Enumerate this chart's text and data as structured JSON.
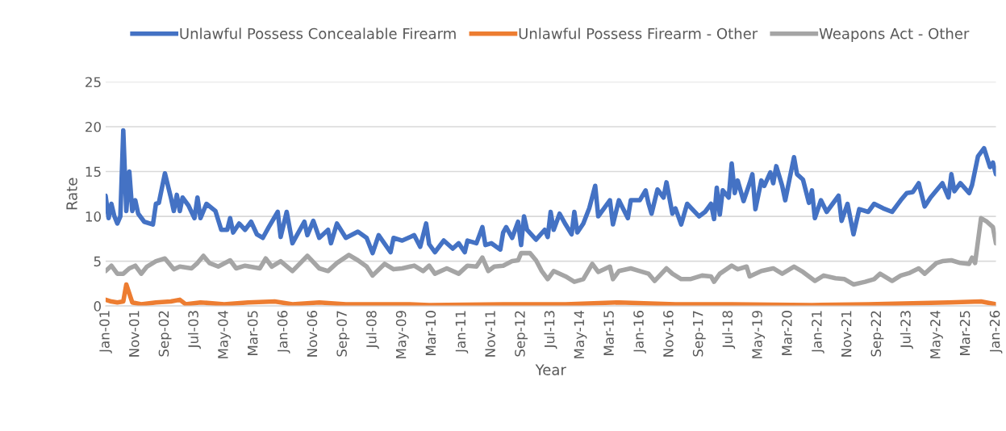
{
  "chart_data": {
    "type": "line",
    "xlabel": "Year",
    "ylabel": "Rate",
    "ylim": [
      0,
      25
    ],
    "yticks": [
      0,
      5,
      10,
      15,
      20,
      25
    ],
    "grid": "y",
    "legend": "top",
    "marker": "none",
    "line_style": "solid",
    "xlim": [
      "2001-01",
      "2026-01"
    ],
    "xticks": [
      {
        "value": "2001-01",
        "label": "Jan-01"
      },
      {
        "value": "2001-11",
        "label": "Nov-01"
      },
      {
        "value": "2002-09",
        "label": "Sep-02"
      },
      {
        "value": "2003-07",
        "label": "Jul-03"
      },
      {
        "value": "2004-05",
        "label": "May-04"
      },
      {
        "value": "2005-03",
        "label": "Mar-05"
      },
      {
        "value": "2006-01",
        "label": "Jan-06"
      },
      {
        "value": "2006-11",
        "label": "Nov-06"
      },
      {
        "value": "2007-09",
        "label": "Sep-07"
      },
      {
        "value": "2008-07",
        "label": "Jul-08"
      },
      {
        "value": "2009-05",
        "label": "May-09"
      },
      {
        "value": "2010-03",
        "label": "Mar-10"
      },
      {
        "value": "2011-01",
        "label": "Jan-11"
      },
      {
        "value": "2011-11",
        "label": "Nov-11"
      },
      {
        "value": "2012-09",
        "label": "Sep-12"
      },
      {
        "value": "2013-07",
        "label": "Jul-13"
      },
      {
        "value": "2014-05",
        "label": "May-14"
      },
      {
        "value": "2015-03",
        "label": "Mar-15"
      },
      {
        "value": "2016-01",
        "label": "Jan-16"
      },
      {
        "value": "2016-11",
        "label": "Nov-16"
      },
      {
        "value": "2017-09",
        "label": "Sep-17"
      },
      {
        "value": "2018-07",
        "label": "Jul-18"
      },
      {
        "value": "2019-05",
        "label": "May-19"
      },
      {
        "value": "2020-03",
        "label": "Mar-20"
      },
      {
        "value": "2021-01",
        "label": "Jan-21"
      },
      {
        "value": "2021-11",
        "label": "Nov-21"
      },
      {
        "value": "2022-09",
        "label": "Sep-22"
      },
      {
        "value": "2023-07",
        "label": "Jul-23"
      },
      {
        "value": "2024-05",
        "label": "May-24"
      },
      {
        "value": "2025-03",
        "label": "Mar-25"
      },
      {
        "value": "2026-01",
        "label": "Jan-26"
      }
    ],
    "series": [
      {
        "name": "Unlawful Possess Concealable Firearm",
        "color": "#4472c4",
        "x": [
          "2001-01",
          "2001-02",
          "2001-03",
          "2001-04",
          "2001-05",
          "2001-06",
          "2001-07",
          "2001-08",
          "2001-09",
          "2001-10",
          "2001-11",
          "2001-12",
          "2002-02",
          "2002-05",
          "2002-06",
          "2002-07",
          "2002-09",
          "2002-11",
          "2002-12",
          "2003-01",
          "2003-02",
          "2003-03",
          "2003-05",
          "2003-07",
          "2003-08",
          "2003-09",
          "2003-11",
          "2004-02",
          "2004-04",
          "2004-06",
          "2004-07",
          "2004-08",
          "2004-10",
          "2004-12",
          "2005-02",
          "2005-04",
          "2005-06",
          "2005-08",
          "2005-11",
          "2005-12",
          "2006-02",
          "2006-04",
          "2006-08",
          "2006-09",
          "2006-11",
          "2007-01",
          "2007-04",
          "2007-05",
          "2007-07",
          "2007-10",
          "2008-02",
          "2008-05",
          "2008-07",
          "2008-09",
          "2009-01",
          "2009-02",
          "2009-05",
          "2009-07",
          "2009-09",
          "2009-11",
          "2010-01",
          "2010-02",
          "2010-04",
          "2010-07",
          "2010-10",
          "2010-12",
          "2011-02",
          "2011-03",
          "2011-06",
          "2011-08",
          "2011-09",
          "2011-11",
          "2012-02",
          "2012-03",
          "2012-04",
          "2012-06",
          "2012-08",
          "2012-09",
          "2012-10",
          "2012-11",
          "2013-02",
          "2013-05",
          "2013-06",
          "2013-07",
          "2013-08",
          "2013-10",
          "2013-12",
          "2014-02",
          "2014-03",
          "2014-04",
          "2014-06",
          "2014-08",
          "2014-10",
          "2014-11",
          "2015-03",
          "2015-04",
          "2015-06",
          "2015-09",
          "2015-10",
          "2016-01",
          "2016-03",
          "2016-04",
          "2016-05",
          "2016-07",
          "2016-09",
          "2016-10",
          "2016-12",
          "2017-01",
          "2017-03",
          "2017-05",
          "2017-09",
          "2017-11",
          "2018-01",
          "2018-02",
          "2018-03",
          "2018-04",
          "2018-05",
          "2018-07",
          "2018-08",
          "2018-09",
          "2018-10",
          "2018-12",
          "2019-02",
          "2019-03",
          "2019-04",
          "2019-06",
          "2019-07",
          "2019-09",
          "2019-10",
          "2019-11",
          "2020-01",
          "2020-02",
          "2020-05",
          "2020-06",
          "2020-08",
          "2020-10",
          "2020-11",
          "2020-12",
          "2021-02",
          "2021-04",
          "2021-06",
          "2021-08",
          "2021-09",
          "2021-11",
          "2022-01",
          "2022-03",
          "2022-06",
          "2022-08",
          "2022-11",
          "2023-02",
          "2023-05",
          "2023-07",
          "2023-09",
          "2023-11",
          "2024-01",
          "2024-03",
          "2024-07",
          "2024-09",
          "2024-10",
          "2024-11",
          "2025-01",
          "2025-04",
          "2025-05",
          "2025-07",
          "2025-09",
          "2025-11",
          "2025-12",
          "2026-01"
        ],
        "values": [
          12.3,
          9.8,
          11.4,
          10,
          9.2,
          10,
          19.6,
          10.6,
          15,
          10.6,
          11.8,
          10.3,
          9.4,
          9.1,
          11.4,
          11.5,
          14.8,
          12.1,
          10.6,
          12.4,
          10.6,
          12.1,
          11.2,
          9.8,
          12.1,
          9.8,
          11.4,
          10.6,
          8.5,
          8.5,
          9.8,
          8.2,
          9.2,
          8.5,
          9.4,
          8,
          7.6,
          8.8,
          10.5,
          7.7,
          10.5,
          7,
          9.4,
          7.9,
          9.5,
          7.6,
          8.5,
          7,
          9.2,
          7.6,
          8.3,
          7.6,
          5.9,
          7.9,
          6,
          7.6,
          7.3,
          7.6,
          7.9,
          6.6,
          9.2,
          6.9,
          6,
          7.3,
          6.4,
          7,
          6,
          7.3,
          7,
          8.8,
          6.8,
          7,
          6.3,
          8.2,
          8.8,
          7.6,
          9.4,
          6.8,
          10,
          8.5,
          7.4,
          8.5,
          7.7,
          10.5,
          8.5,
          10.3,
          9.1,
          8,
          10.5,
          8.2,
          9.2,
          10.9,
          13.4,
          10,
          11.8,
          9.1,
          11.8,
          9.8,
          11.8,
          11.8,
          12.9,
          11.4,
          10.3,
          13,
          12.1,
          13.8,
          10.3,
          10.9,
          9.1,
          11.4,
          10,
          10.5,
          11.4,
          9.7,
          13.2,
          10.2,
          12.9,
          12.1,
          15.9,
          12.6,
          14,
          11.7,
          13.7,
          14.7,
          10.8,
          14,
          13.4,
          14.9,
          13.7,
          15.6,
          13.4,
          11.8,
          16.6,
          14.7,
          14.1,
          11.5,
          12.9,
          9.8,
          11.8,
          10.5,
          11.4,
          12.3,
          9.5,
          11.4,
          8,
          10.8,
          10.5,
          11.4,
          10.9,
          10.5,
          11.8,
          12.6,
          12.7,
          13.7,
          11.1,
          12.1,
          13.7,
          12.1,
          14.7,
          12.8,
          13.7,
          12.6,
          13.5,
          16.7,
          17.6,
          15.5,
          16,
          14.7
        ]
      },
      {
        "name": "Unlawful Possess Firearm - Other",
        "color": "#ed7d31",
        "x": [
          "2001-01",
          "2001-03",
          "2001-05",
          "2001-07",
          "2001-08",
          "2001-10",
          "2002-01",
          "2002-06",
          "2002-11",
          "2003-02",
          "2003-04",
          "2003-09",
          "2004-05",
          "2005-01",
          "2005-10",
          "2006-04",
          "2007-01",
          "2007-10",
          "2008-07",
          "2009-07",
          "2010-02",
          "2012-03",
          "2013-12",
          "2015-06",
          "2017-01",
          "2018-08",
          "2020-11",
          "2022-06",
          "2024-09",
          "2025-08",
          "2026-01"
        ],
        "values": [
          0.7,
          0.5,
          0.4,
          0.5,
          2.4,
          0.4,
          0.2,
          0.4,
          0.5,
          0.7,
          0.2,
          0.4,
          0.2,
          0.4,
          0.5,
          0.2,
          0.4,
          0.2,
          0.2,
          0.2,
          0.1,
          0.2,
          0.2,
          0.4,
          0.2,
          0.2,
          0.1,
          0.2,
          0.4,
          0.5,
          0.2
        ]
      },
      {
        "name": "Weapons Act - Other",
        "color": "#a5a5a5",
        "x": [
          "2001-01",
          "2001-03",
          "2001-05",
          "2001-07",
          "2001-09",
          "2001-11",
          "2002-01",
          "2002-03",
          "2002-06",
          "2002-09",
          "2002-12",
          "2003-02",
          "2003-06",
          "2003-08",
          "2003-10",
          "2003-12",
          "2004-03",
          "2004-07",
          "2004-09",
          "2004-12",
          "2005-05",
          "2005-07",
          "2005-09",
          "2005-12",
          "2006-04",
          "2006-09",
          "2007-01",
          "2007-04",
          "2007-07",
          "2007-11",
          "2008-02",
          "2008-05",
          "2008-07",
          "2008-11",
          "2009-02",
          "2009-05",
          "2009-09",
          "2009-12",
          "2010-02",
          "2010-04",
          "2010-08",
          "2010-12",
          "2011-03",
          "2011-06",
          "2011-08",
          "2011-10",
          "2011-12",
          "2012-03",
          "2012-06",
          "2012-08",
          "2012-09",
          "2012-12",
          "2013-02",
          "2013-04",
          "2013-06",
          "2013-08",
          "2013-12",
          "2014-03",
          "2014-06",
          "2014-09",
          "2014-11",
          "2015-03",
          "2015-04",
          "2015-06",
          "2015-10",
          "2016-01",
          "2016-04",
          "2016-06",
          "2016-10",
          "2016-12",
          "2017-03",
          "2017-06",
          "2017-10",
          "2018-01",
          "2018-02",
          "2018-04",
          "2018-08",
          "2018-10",
          "2019-01",
          "2019-02",
          "2019-06",
          "2019-10",
          "2020-01",
          "2020-05",
          "2020-08",
          "2020-12",
          "2021-03",
          "2021-07",
          "2021-10",
          "2022-01",
          "2022-05",
          "2022-08",
          "2022-10",
          "2023-02",
          "2023-05",
          "2023-08",
          "2023-11",
          "2024-01",
          "2024-05",
          "2024-07",
          "2024-10",
          "2025-01",
          "2025-04",
          "2025-05",
          "2025-06",
          "2025-08",
          "2025-10",
          "2025-12",
          "2026-01"
        ],
        "values": [
          3.9,
          4.5,
          3.6,
          3.6,
          4.2,
          4.5,
          3.6,
          4.4,
          5,
          5.3,
          4.1,
          4.4,
          4.2,
          4.8,
          5.6,
          4.8,
          4.4,
          5.1,
          4.2,
          4.5,
          4.2,
          5.3,
          4.4,
          5,
          3.9,
          5.6,
          4.2,
          3.9,
          4.8,
          5.7,
          5.1,
          4.4,
          3.4,
          4.7,
          4.1,
          4.2,
          4.5,
          3.9,
          4.5,
          3.6,
          4.2,
          3.6,
          4.5,
          4.4,
          5.4,
          3.9,
          4.4,
          4.5,
          5,
          5.1,
          5.9,
          5.9,
          5.1,
          3.9,
          3,
          3.9,
          3.3,
          2.7,
          3,
          4.7,
          3.8,
          4.4,
          3,
          3.9,
          4.2,
          3.9,
          3.6,
          2.8,
          4.2,
          3.6,
          3,
          3,
          3.4,
          3.3,
          2.7,
          3.6,
          4.5,
          4.1,
          4.4,
          3.3,
          3.9,
          4.2,
          3.6,
          4.4,
          3.8,
          2.8,
          3.4,
          3.1,
          3,
          2.4,
          2.7,
          3,
          3.6,
          2.8,
          3.4,
          3.7,
          4.2,
          3.6,
          4.8,
          5,
          5.1,
          4.8,
          4.7,
          5.4,
          4.8,
          9.8,
          9.4,
          8.8,
          7
        ]
      }
    ]
  }
}
